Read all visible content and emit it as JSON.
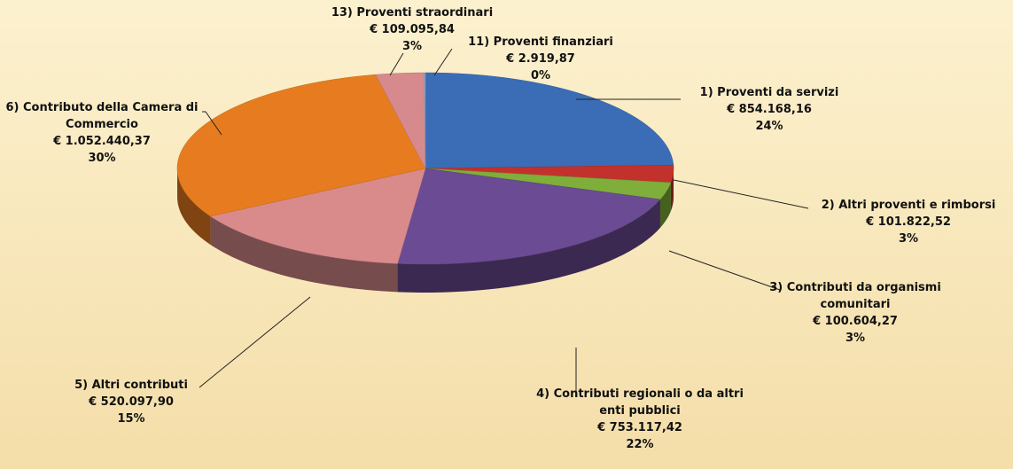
{
  "chart_data": {
    "type": "pie3d",
    "categories": [
      "1) Proventi da servizi",
      "2) Altri proventi e rimborsi",
      "3) Contributi da organismi comunitari",
      "4) Contributi regionali  o da altri enti pubblici",
      "5) Altri contributi",
      "6) Contributo della Camera di Commercio",
      "13) Proventi straordinari",
      "11) Proventi finanziari"
    ],
    "values": [
      854168.16,
      101822.52,
      100604.27,
      753117.42,
      520097.9,
      1052440.37,
      109095.84,
      2919.87
    ],
    "value_labels": [
      "€ 854.168,16",
      "€ 101.822,52",
      "€ 100.604,27",
      "€ 753.117,42",
      "€ 520.097,90",
      "€ 1.052.440,37",
      "€ 109.095,84",
      "€ 2.919,87"
    ],
    "percent_labels": [
      "24%",
      "3%",
      "3%",
      "22%",
      "15%",
      "30%",
      "3%",
      "0%"
    ],
    "colors": [
      "#3a6db5",
      "#c3312c",
      "#7fae3a",
      "#6b4b93",
      "#d98b8c",
      "#e67c1f",
      "#d68a8e",
      "#8ea8c8"
    ]
  }
}
